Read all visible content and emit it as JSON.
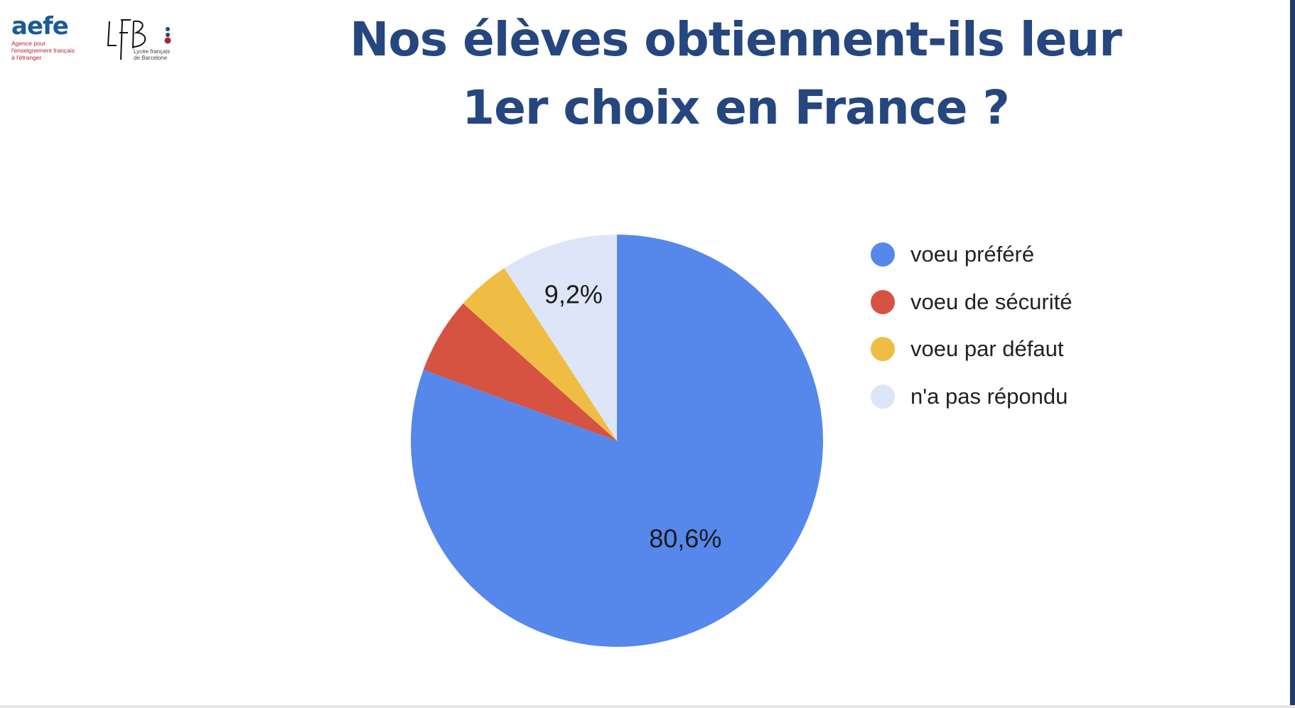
{
  "header": {
    "title_line1": "Nos élèves obtiennent-ils leur",
    "title_line2": "1er choix en France ?",
    "logo_aefe": {
      "wordmark": "aefe",
      "tagline": "Agence pour\nl'enseignement français\nà l'étranger"
    },
    "logo_lfb": {
      "wordmark": "LFB",
      "subtitle": "Lycée français\nde Barcelone"
    }
  },
  "chart_data": {
    "type": "pie",
    "title": "",
    "slices": [
      {
        "name": "voeu préféré",
        "value": 80.6,
        "color": "#5588ea",
        "label": "80,6%"
      },
      {
        "name": "voeu de sécurité",
        "value": 6.0,
        "color": "#d65241",
        "label": ""
      },
      {
        "name": "voeu par défaut",
        "value": 4.2,
        "color": "#f0bd44",
        "label": ""
      },
      {
        "name": "n'a pas répondu",
        "value": 9.2,
        "color": "#dde6f8",
        "label": "9,2%"
      }
    ],
    "legend_position": "right",
    "start_angle": "12 o'clock",
    "direction": "clockwise"
  }
}
